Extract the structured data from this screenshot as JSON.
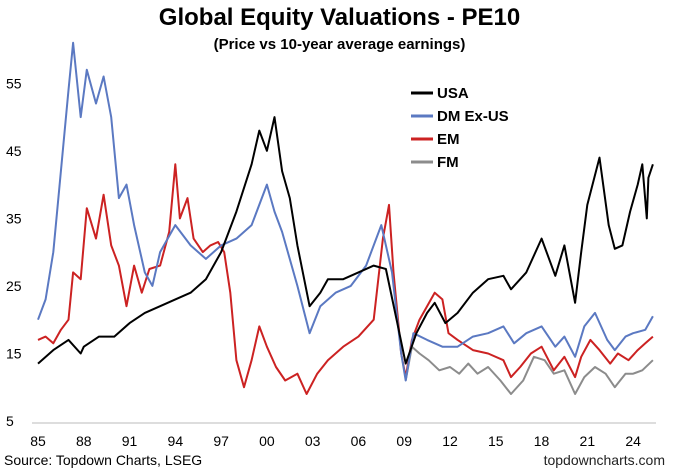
{
  "chart_data": {
    "type": "line",
    "title": "Global Equity Valuations - PE10",
    "subtitle": "(Price vs 10-year average earnings)",
    "xlabel": "",
    "ylabel": "",
    "xlim": [
      1985,
      2025.5
    ],
    "ylim": [
      5,
      62
    ],
    "yticks": [
      5,
      15,
      25,
      35,
      45,
      55
    ],
    "xtick_labels": [
      "85",
      "88",
      "91",
      "94",
      "97",
      "00",
      "03",
      "06",
      "09",
      "12",
      "15",
      "18",
      "21",
      "24"
    ],
    "xtick_values": [
      1985,
      1988,
      1991,
      1994,
      1997,
      2000,
      2003,
      2006,
      2009,
      2012,
      2015,
      2018,
      2021,
      2024
    ],
    "grid": false,
    "legend_position": "top-right",
    "source": "Source: Topdown Charts, LSEG",
    "website": "topdowncharts.com",
    "series": [
      {
        "name": "USA",
        "color": "#000000",
        "points": [
          [
            1985,
            13.5
          ],
          [
            1986,
            15.5
          ],
          [
            1987,
            17.0
          ],
          [
            1987.8,
            15.0
          ],
          [
            1988,
            16.0
          ],
          [
            1989,
            17.5
          ],
          [
            1990,
            17.5
          ],
          [
            1991,
            19.5
          ],
          [
            1992,
            21.0
          ],
          [
            1993,
            22.0
          ],
          [
            1994,
            23.0
          ],
          [
            1995,
            24.0
          ],
          [
            1996,
            26.0
          ],
          [
            1997,
            30.0
          ],
          [
            1998,
            36.0
          ],
          [
            1999,
            43.0
          ],
          [
            1999.5,
            48.0
          ],
          [
            2000,
            45.0
          ],
          [
            2000.5,
            50.0
          ],
          [
            2001,
            42.0
          ],
          [
            2001.5,
            38.0
          ],
          [
            2002,
            31.0
          ],
          [
            2002.8,
            22.0
          ],
          [
            2003.5,
            24.0
          ],
          [
            2004,
            26.0
          ],
          [
            2005,
            26.0
          ],
          [
            2006,
            27.0
          ],
          [
            2007,
            28.0
          ],
          [
            2007.8,
            27.5
          ],
          [
            2008.5,
            20.0
          ],
          [
            2009.1,
            13.5
          ],
          [
            2009.8,
            18.0
          ],
          [
            2010.5,
            21.0
          ],
          [
            2011,
            22.5
          ],
          [
            2011.7,
            19.5
          ],
          [
            2012.5,
            21.0
          ],
          [
            2013.5,
            24.0
          ],
          [
            2014.5,
            26.0
          ],
          [
            2015.5,
            26.5
          ],
          [
            2016,
            24.5
          ],
          [
            2017,
            27.0
          ],
          [
            2018,
            32.0
          ],
          [
            2018.9,
            26.5
          ],
          [
            2019.5,
            31.0
          ],
          [
            2020.2,
            22.5
          ],
          [
            2020.6,
            30.0
          ],
          [
            2021,
            37.0
          ],
          [
            2021.8,
            44.0
          ],
          [
            2022.4,
            34.0
          ],
          [
            2022.8,
            30.5
          ],
          [
            2023.3,
            31.0
          ],
          [
            2023.8,
            36.0
          ],
          [
            2024.3,
            40.0
          ],
          [
            2024.6,
            43.0
          ],
          [
            2024.9,
            35.0
          ],
          [
            2025,
            41.0
          ],
          [
            2025.3,
            43.0
          ]
        ]
      },
      {
        "name": "DM Ex-US",
        "color": "#5b79c2",
        "points": [
          [
            1985,
            20.0
          ],
          [
            1985.5,
            23.0
          ],
          [
            1986,
            30.0
          ],
          [
            1986.5,
            42.0
          ],
          [
            1987,
            54.0
          ],
          [
            1987.3,
            61.0
          ],
          [
            1987.8,
            50.0
          ],
          [
            1988.2,
            57.0
          ],
          [
            1988.8,
            52.0
          ],
          [
            1989.3,
            56.0
          ],
          [
            1989.8,
            50.0
          ],
          [
            1990.3,
            38.0
          ],
          [
            1990.8,
            40.0
          ],
          [
            1991.3,
            34.0
          ],
          [
            1992,
            27.0
          ],
          [
            1992.5,
            25.0
          ],
          [
            1993,
            30.0
          ],
          [
            1994,
            34.0
          ],
          [
            1995,
            31.0
          ],
          [
            1996,
            29.0
          ],
          [
            1997,
            31.0
          ],
          [
            1998,
            32.0
          ],
          [
            1999,
            34.0
          ],
          [
            2000,
            40.0
          ],
          [
            2000.5,
            36.0
          ],
          [
            2001,
            33.0
          ],
          [
            2002,
            25.0
          ],
          [
            2002.8,
            18.0
          ],
          [
            2003.5,
            22.0
          ],
          [
            2004.5,
            24.0
          ],
          [
            2005.5,
            25.0
          ],
          [
            2006.5,
            28.0
          ],
          [
            2007.5,
            34.0
          ],
          [
            2008.2,
            27.0
          ],
          [
            2008.8,
            15.0
          ],
          [
            2009.1,
            11.0
          ],
          [
            2009.6,
            18.0
          ],
          [
            2010.5,
            17.0
          ],
          [
            2011.5,
            16.0
          ],
          [
            2012.5,
            16.0
          ],
          [
            2013.5,
            17.5
          ],
          [
            2014.5,
            18.0
          ],
          [
            2015.5,
            19.0
          ],
          [
            2016.2,
            16.5
          ],
          [
            2017,
            18.0
          ],
          [
            2018,
            19.0
          ],
          [
            2018.9,
            16.0
          ],
          [
            2019.5,
            17.5
          ],
          [
            2020.2,
            14.5
          ],
          [
            2020.8,
            19.0
          ],
          [
            2021.5,
            21.0
          ],
          [
            2022.3,
            17.0
          ],
          [
            2022.8,
            15.5
          ],
          [
            2023.5,
            17.5
          ],
          [
            2024,
            18.0
          ],
          [
            2024.8,
            18.5
          ],
          [
            2025.3,
            20.5
          ]
        ]
      },
      {
        "name": "EM",
        "color": "#cc2222",
        "points": [
          [
            1985,
            17.0
          ],
          [
            1985.5,
            17.5
          ],
          [
            1986,
            16.5
          ],
          [
            1986.5,
            18.5
          ],
          [
            1987,
            20.0
          ],
          [
            1987.3,
            27.0
          ],
          [
            1987.8,
            26.0
          ],
          [
            1988.2,
            36.5
          ],
          [
            1988.8,
            32.0
          ],
          [
            1989.3,
            38.5
          ],
          [
            1989.8,
            31.0
          ],
          [
            1990.3,
            28.0
          ],
          [
            1990.8,
            22.0
          ],
          [
            1991.3,
            28.0
          ],
          [
            1991.8,
            24.0
          ],
          [
            1992.3,
            27.5
          ],
          [
            1993,
            28.0
          ],
          [
            1993.6,
            33.0
          ],
          [
            1994,
            43.0
          ],
          [
            1994.3,
            35.0
          ],
          [
            1994.8,
            38.0
          ],
          [
            1995.2,
            32.0
          ],
          [
            1995.8,
            30.0
          ],
          [
            1996.3,
            31.0
          ],
          [
            1996.8,
            31.5
          ],
          [
            1997.2,
            30.0
          ],
          [
            1997.6,
            24.0
          ],
          [
            1998,
            14.0
          ],
          [
            1998.5,
            10.0
          ],
          [
            1999,
            14.0
          ],
          [
            1999.5,
            19.0
          ],
          [
            2000,
            16.0
          ],
          [
            2000.6,
            13.0
          ],
          [
            2001.2,
            11.0
          ],
          [
            2002,
            12.0
          ],
          [
            2002.6,
            9.0
          ],
          [
            2003.3,
            12.0
          ],
          [
            2004,
            14.0
          ],
          [
            2005,
            16.0
          ],
          [
            2006,
            17.5
          ],
          [
            2007,
            20.0
          ],
          [
            2007.6,
            32.0
          ],
          [
            2008,
            37.0
          ],
          [
            2008.3,
            27.0
          ],
          [
            2008.8,
            15.0
          ],
          [
            2009.1,
            11.5
          ],
          [
            2009.5,
            17.0
          ],
          [
            2010,
            20.0
          ],
          [
            2010.5,
            22.0
          ],
          [
            2011,
            24.0
          ],
          [
            2011.5,
            23.0
          ],
          [
            2011.9,
            18.0
          ],
          [
            2012.5,
            17.0
          ],
          [
            2013.5,
            15.5
          ],
          [
            2014.5,
            15.0
          ],
          [
            2015.5,
            14.0
          ],
          [
            2016,
            11.5
          ],
          [
            2016.6,
            13.0
          ],
          [
            2017.3,
            15.0
          ],
          [
            2018,
            16.0
          ],
          [
            2018.8,
            12.5
          ],
          [
            2019.5,
            14.5
          ],
          [
            2020.2,
            11.5
          ],
          [
            2020.6,
            14.5
          ],
          [
            2021.2,
            17.0
          ],
          [
            2021.8,
            15.5
          ],
          [
            2022.5,
            13.5
          ],
          [
            2023,
            15.0
          ],
          [
            2023.7,
            14.0
          ],
          [
            2024.3,
            15.5
          ],
          [
            2024.8,
            16.5
          ],
          [
            2025.3,
            17.5
          ]
        ]
      },
      {
        "name": "FM",
        "color": "#8c8c8c",
        "points": [
          [
            2009.1,
            11.0
          ],
          [
            2009.5,
            16.0
          ],
          [
            2010,
            15.0
          ],
          [
            2010.6,
            14.0
          ],
          [
            2011.3,
            12.5
          ],
          [
            2012,
            13.0
          ],
          [
            2012.6,
            12.0
          ],
          [
            2013.2,
            13.5
          ],
          [
            2013.8,
            12.0
          ],
          [
            2014.5,
            13.0
          ],
          [
            2015.3,
            11.0
          ],
          [
            2016,
            9.0
          ],
          [
            2016.8,
            11.0
          ],
          [
            2017.5,
            14.5
          ],
          [
            2018.2,
            14.0
          ],
          [
            2018.8,
            12.0
          ],
          [
            2019.5,
            12.5
          ],
          [
            2020.2,
            9.0
          ],
          [
            2020.8,
            11.5
          ],
          [
            2021.5,
            13.0
          ],
          [
            2022.2,
            12.0
          ],
          [
            2022.8,
            10.0
          ],
          [
            2023.5,
            12.0
          ],
          [
            2024,
            12.0
          ],
          [
            2024.6,
            12.5
          ],
          [
            2025.3,
            14.0
          ]
        ]
      }
    ]
  }
}
